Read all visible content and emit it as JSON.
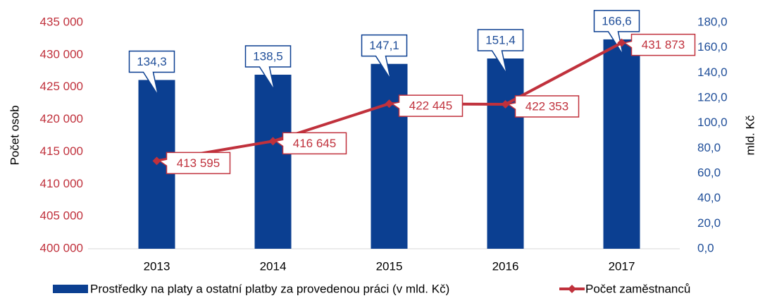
{
  "chart_data": {
    "type": "bar-line",
    "categories": [
      "2013",
      "2014",
      "2015",
      "2016",
      "2017"
    ],
    "y_label": "Počet osob",
    "y2_label": "mld. Kč",
    "ylim": [
      400000,
      435000
    ],
    "yticks": [
      {
        "value": 400000,
        "label": "400 000"
      },
      {
        "value": 405000,
        "label": "405 000"
      },
      {
        "value": 410000,
        "label": "410 000"
      },
      {
        "value": 415000,
        "label": "415 000"
      },
      {
        "value": 420000,
        "label": "420 000"
      },
      {
        "value": 425000,
        "label": "425 000"
      },
      {
        "value": 430000,
        "label": "430 000"
      },
      {
        "value": 435000,
        "label": "435 000"
      }
    ],
    "y2lim": [
      0,
      180
    ],
    "y2ticks": [
      {
        "value": 0,
        "label": "0,0"
      },
      {
        "value": 20,
        "label": "20,0"
      },
      {
        "value": 40,
        "label": "40,0"
      },
      {
        "value": 60,
        "label": "60,0"
      },
      {
        "value": 80,
        "label": "80,0"
      },
      {
        "value": 100,
        "label": "100,0"
      },
      {
        "value": 120,
        "label": "120,0"
      },
      {
        "value": 140,
        "label": "140,0"
      },
      {
        "value": 160,
        "label": "160,0"
      },
      {
        "value": 180,
        "label": "180,0"
      }
    ],
    "series": [
      {
        "name": "Prostředky na platy a ostatní platby za provedenou práci (v mld. Kč)",
        "type": "bar",
        "axis": "y2",
        "color": "#0b3f91",
        "values": [
          134.3,
          138.5,
          147.1,
          151.4,
          166.6
        ],
        "value_labels": [
          "134,3",
          "138,5",
          "147,1",
          "151,4",
          "166,6"
        ]
      },
      {
        "name": "Počet zaměstnanců",
        "type": "line",
        "axis": "y",
        "color": "#c0313c",
        "values": [
          413595,
          416645,
          422445,
          422353,
          431873
        ],
        "value_labels": [
          "413 595",
          "416 645",
          "422 445",
          "422 353",
          "431 873"
        ]
      }
    ],
    "legend": "bottom"
  }
}
